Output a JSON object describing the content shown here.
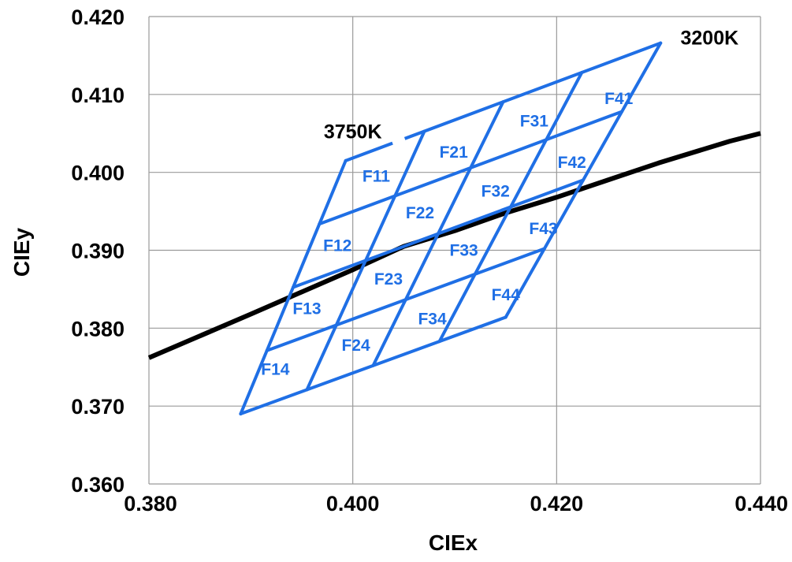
{
  "chart_data": {
    "type": "line",
    "xlabel": "CIEx",
    "ylabel": "CIEy",
    "xlim": [
      0.38,
      0.44
    ],
    "ylim": [
      0.36,
      0.42
    ],
    "x_ticks": [
      "0.380",
      "0.400",
      "0.420",
      "0.440"
    ],
    "y_ticks": [
      "0.360",
      "0.370",
      "0.380",
      "0.390",
      "0.400",
      "0.410",
      "0.420"
    ],
    "grid": true,
    "colors": {
      "locus": "#000000",
      "bins": "#1f6fe5",
      "grid": "#9a9a9a"
    },
    "series": [
      {
        "x": [
          0.38,
          0.39,
          0.4,
          0.405,
          0.41,
          0.415,
          0.42,
          0.425,
          0.43,
          0.437,
          0.44
        ],
        "y": [
          0.3762,
          0.3818,
          0.3875,
          0.3905,
          0.3925,
          0.3948,
          0.3968,
          0.399,
          0.4012,
          0.404,
          0.405
        ]
      }
    ],
    "bin_grid": {
      "corners": {
        "top_left": [
          0.3993,
          0.4015
        ],
        "top_right": [
          0.4302,
          0.4166
        ],
        "bottom_left": [
          0.389,
          0.369
        ],
        "bottom_right": [
          0.415,
          0.3814
        ]
      },
      "divisions": 4,
      "gap_segment": [
        0.4039,
        0.4051
      ]
    },
    "cells": [
      {
        "label": "F11",
        "x": 0.4023,
        "y": 0.3995
      },
      {
        "label": "F21",
        "x": 0.4099,
        "y": 0.4026
      },
      {
        "label": "F31",
        "x": 0.4178,
        "y": 0.4066
      },
      {
        "label": "F41",
        "x": 0.4261,
        "y": 0.4095
      },
      {
        "label": "F12",
        "x": 0.3985,
        "y": 0.3906
      },
      {
        "label": "F22",
        "x": 0.4066,
        "y": 0.3948
      },
      {
        "label": "F32",
        "x": 0.414,
        "y": 0.3976
      },
      {
        "label": "F42",
        "x": 0.4215,
        "y": 0.4013
      },
      {
        "label": "F13",
        "x": 0.3955,
        "y": 0.3825
      },
      {
        "label": "F23",
        "x": 0.4035,
        "y": 0.3863
      },
      {
        "label": "F33",
        "x": 0.4109,
        "y": 0.39
      },
      {
        "label": "F43",
        "x": 0.4187,
        "y": 0.3928
      },
      {
        "label": "F14",
        "x": 0.3924,
        "y": 0.3747
      },
      {
        "label": "F24",
        "x": 0.4003,
        "y": 0.3778
      },
      {
        "label": "F34",
        "x": 0.4078,
        "y": 0.3812
      },
      {
        "label": "F44",
        "x": 0.415,
        "y": 0.3843
      }
    ],
    "annotations": [
      {
        "text": "3750K",
        "x": 0.4,
        "y": 0.4053
      },
      {
        "text": "3200K",
        "x": 0.435,
        "y": 0.4173
      }
    ]
  }
}
